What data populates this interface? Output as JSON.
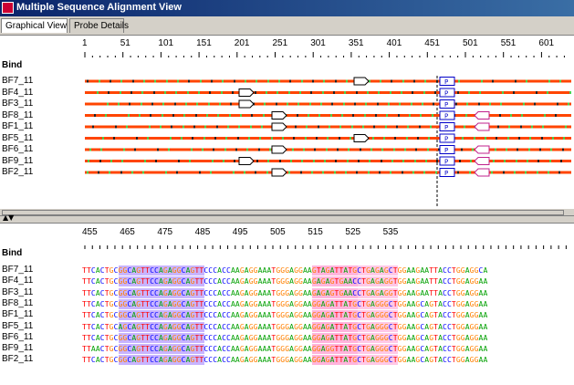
{
  "window": {
    "title": "Multiple Sequence Alignment View"
  },
  "tabs": [
    {
      "label": "Graphical View",
      "active": true
    },
    {
      "label": "Probe Details",
      "active": false
    }
  ],
  "top": {
    "ruler_ticks": [
      "1",
      "51",
      "101",
      "151",
      "201",
      "251",
      "301",
      "351",
      "401",
      "451",
      "501",
      "551",
      "601"
    ],
    "bind_label": "Bind",
    "probe_label": "P",
    "rows": [
      {
        "name": "BF7_11"
      },
      {
        "name": "BF4_11"
      },
      {
        "name": "BF3_11"
      },
      {
        "name": "BF8_11"
      },
      {
        "name": "BF1_11"
      },
      {
        "name": "BF5_11"
      },
      {
        "name": "BF6_11"
      },
      {
        "name": "BF9_11"
      },
      {
        "name": "BF2_11"
      }
    ]
  },
  "bottom": {
    "ruler_ticks": [
      "455",
      "465",
      "475",
      "485",
      "495",
      "505",
      "515",
      "525",
      "535"
    ],
    "bind_label": "Bind",
    "rows": [
      {
        "name": "BF7_11",
        "seq": "TTCACTGCGGCAGTTCCAGAGGCAGTTCCCACCAAGAGGAAATGGGAGGAAGTAGATTATGCTGAGAGCTGGAAGAATTACCTGGAGGCA"
      },
      {
        "name": "BF4_11",
        "seq": "TTCACTGCGGCAGTTCCAGAGGCAGTTCCCACCAAGAGGAAATGGGAGGAAGAGAGTGAACCTGAGAGGTGGAAGAATTACCTGGAGGAA"
      },
      {
        "name": "BF3_11",
        "seq": "TTCACTGCGGCAGTTCCAGAGGCAGTTCCCACCAAGAGGAAATGGGAGGAAGAGAGTGAACCTGAGAGGTGGAAGAATTACCTGGAGGAA"
      },
      {
        "name": "BF8_11",
        "seq": "TTCACTGCGGCAGTTCCAGAGGCAGTTCCCACCAAGAGGAAATGGGAGGAAGGAGATTATGCTGAGGGCTGGAAGCAGTACCTGGAGGAA"
      },
      {
        "name": "BF1_11",
        "seq": "TTCACTGCGGCAGTTCCAGAGGCAGTTCCCACCAAGAGGAAATGGGAGGAAGGAGATTATGCTGAGGGCTGGAAGCAGTACCTGGAGGAA"
      },
      {
        "name": "BF5_11",
        "seq": "TTCACTGCAGCAGTTCCAGAGGCAGTTCCCACCAAGAGGAAATGGGAGGAAGGAGATTATGCTGAGGGCTGGAAGCAGTACCTGGAGGAA"
      },
      {
        "name": "BF6_11",
        "seq": "TTCACTGCGGCAGTTCCAGAGGCAGTTCCCACCAAGAGGAAATGGGAGGAAGGAGATTATGCTGAGGGCTGGAAGCAGTACCTGGAGGAA"
      },
      {
        "name": "BF9_11",
        "seq": "TTAACTGCGGCAGTTCCAGAGGCAGTTCCCACCAAGAGGAAATGGGAGGAAGGAGGTTATGCTGAGGGCTGGAAGCAGTACCTGGAGGAA"
      },
      {
        "name": "BF2_11",
        "seq": "TTCACTGCGGCAGTTCCAGAGGCAGTTCCCACCAAGAGGAAATGGGAGGAAGGAGATTATGCTGAGGGCTGGAAGCAGTACCTGGAGGAA"
      }
    ]
  },
  "colors": {
    "A": "#00a000",
    "C": "#0000ff",
    "G": "#ff8000",
    "T": "#ff0000",
    "track": "#ff4500",
    "probe": "#0000c8",
    "arrow": "#000000"
  }
}
